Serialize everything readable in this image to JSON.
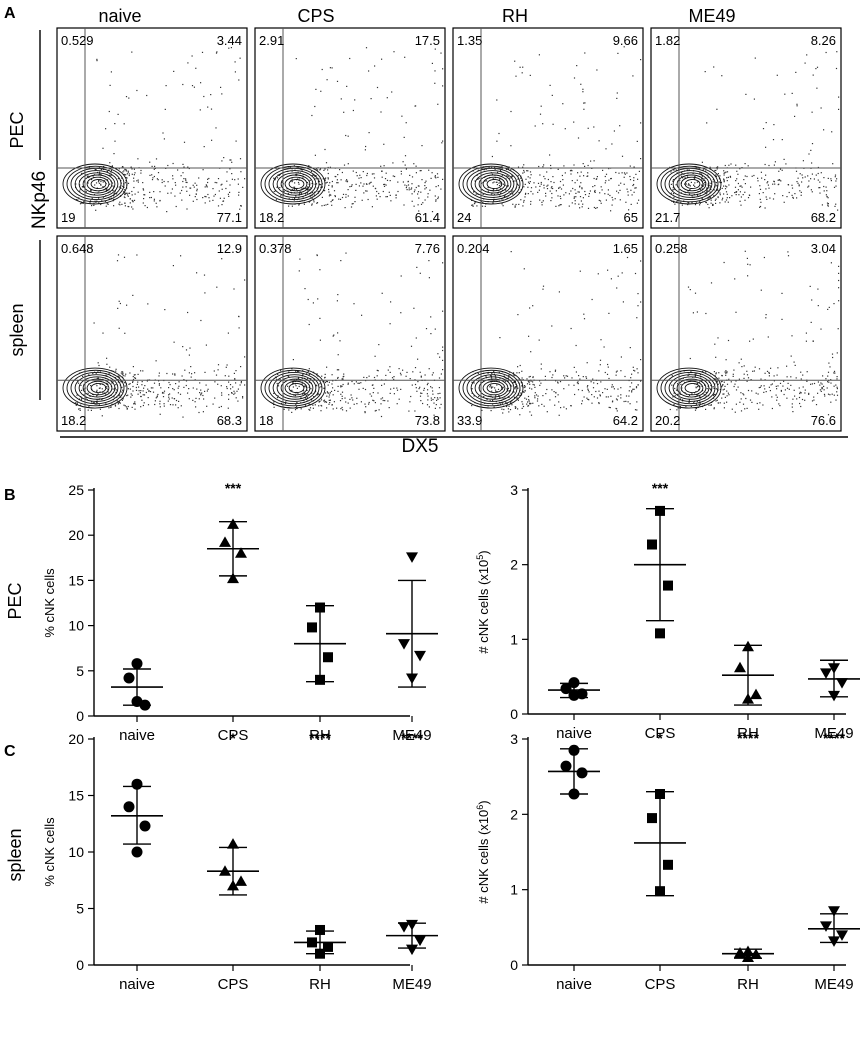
{
  "panels": {
    "A": "A",
    "B": "B",
    "C": "C"
  },
  "flow": {
    "columns": [
      "naive",
      "CPS",
      "RH",
      "ME49"
    ],
    "rows": [
      "PEC",
      "spleen"
    ],
    "y_marker": "NKp46",
    "x_marker": "DX5",
    "quadrants": [
      [
        {
          "ul": "0.529",
          "ur": "3.44",
          "ll": "19",
          "lr": "77.1"
        },
        {
          "ul": "2.91",
          "ur": "17.5",
          "ll": "18.2",
          "lr": "61.4"
        },
        {
          "ul": "1.35",
          "ur": "9.66",
          "ll": "24",
          "lr": "65"
        },
        {
          "ul": "1.82",
          "ur": "8.26",
          "ll": "21.7",
          "lr": "68.2"
        }
      ],
      [
        {
          "ul": "0.648",
          "ur": "12.9",
          "ll": "18.2",
          "lr": "68.3"
        },
        {
          "ul": "0.378",
          "ur": "7.76",
          "ll": "18",
          "lr": "73.8"
        },
        {
          "ul": "0.204",
          "ur": "1.65",
          "ll": "33.9",
          "lr": "64.2"
        },
        {
          "ul": "0.258",
          "ur": "3.04",
          "ll": "20.2",
          "lr": "76.6"
        }
      ]
    ]
  },
  "chart_data": [
    {
      "type": "scatter",
      "panel": "B",
      "row_label": "PEC",
      "categories": [
        "naive",
        "CPS",
        "RH",
        "ME49"
      ],
      "ylabel": "% cNK cells",
      "ylim": [
        0,
        25
      ],
      "yticks": [
        "0",
        "5",
        "10",
        "15",
        "20",
        "25"
      ],
      "series": [
        {
          "name": "naive",
          "marker": "circle",
          "values": [
            5.8,
            4.2,
            1.2,
            1.6
          ],
          "mean": 3.2,
          "sd": [
            1.2,
            5.2
          ],
          "sig": ""
        },
        {
          "name": "CPS",
          "marker": "triangle-up",
          "values": [
            21.2,
            19.2,
            18.0,
            15.2
          ],
          "mean": 18.5,
          "sd": [
            15.5,
            21.5
          ],
          "sig": "***"
        },
        {
          "name": "RH",
          "marker": "square",
          "values": [
            12.0,
            9.8,
            6.5,
            4.0
          ],
          "mean": 8.0,
          "sd": [
            3.8,
            12.2
          ],
          "sig": ""
        },
        {
          "name": "ME49",
          "marker": "triangle-down",
          "values": [
            17.6,
            8.0,
            6.7,
            4.2
          ],
          "mean": 9.1,
          "sd": [
            3.2,
            15.0
          ],
          "sig": ""
        }
      ]
    },
    {
      "type": "scatter",
      "panel": "B",
      "categories": [
        "naive",
        "CPS",
        "RH",
        "ME49"
      ],
      "ylabel": "# cNK cells (x10",
      "ylabel_exp": "5",
      "ylabel_end": ")",
      "ylim": [
        0,
        3
      ],
      "yticks": [
        "0",
        "1",
        "2",
        "3"
      ],
      "series": [
        {
          "name": "naive",
          "marker": "circle",
          "values": [
            0.42,
            0.34,
            0.27,
            0.25
          ],
          "mean": 0.32,
          "sd": [
            0.22,
            0.41
          ],
          "sig": ""
        },
        {
          "name": "CPS",
          "marker": "square",
          "values": [
            2.72,
            2.27,
            1.72,
            1.08
          ],
          "mean": 2.0,
          "sd": [
            1.25,
            2.75
          ],
          "sig": "***"
        },
        {
          "name": "RH",
          "marker": "triangle-up",
          "values": [
            0.9,
            0.62,
            0.26,
            0.2
          ],
          "mean": 0.52,
          "sd": [
            0.12,
            0.92
          ],
          "sig": ""
        },
        {
          "name": "ME49",
          "marker": "triangle-down",
          "values": [
            0.62,
            0.55,
            0.42,
            0.25
          ],
          "mean": 0.47,
          "sd": [
            0.23,
            0.72
          ],
          "sig": ""
        }
      ]
    },
    {
      "type": "scatter",
      "panel": "C",
      "row_label": "spleen",
      "categories": [
        "naive",
        "CPS",
        "RH",
        "ME49"
      ],
      "ylabel": "% cNK cells",
      "ylim": [
        0,
        20
      ],
      "yticks": [
        "0",
        "5",
        "10",
        "15",
        "20"
      ],
      "series": [
        {
          "name": "naive",
          "marker": "circle",
          "values": [
            16.0,
            14.0,
            12.3,
            10.0
          ],
          "mean": 13.2,
          "sd": [
            10.7,
            15.8
          ],
          "sig": ""
        },
        {
          "name": "CPS",
          "marker": "triangle-up",
          "values": [
            10.7,
            8.3,
            7.4,
            7.0
          ],
          "mean": 8.3,
          "sd": [
            6.2,
            10.4
          ],
          "sig": "*"
        },
        {
          "name": "RH",
          "marker": "square",
          "values": [
            3.1,
            2.0,
            1.6,
            1.0
          ],
          "mean": 2.0,
          "sd": [
            1.0,
            3.0
          ],
          "sig": "****"
        },
        {
          "name": "ME49",
          "marker": "triangle-down",
          "values": [
            3.6,
            3.4,
            2.2,
            1.4
          ],
          "mean": 2.6,
          "sd": [
            1.5,
            3.7
          ],
          "sig": "****"
        }
      ]
    },
    {
      "type": "scatter",
      "panel": "C",
      "categories": [
        "naive",
        "CPS",
        "RH",
        "ME49"
      ],
      "ylabel": "# cNK cells (x10",
      "ylabel_exp": "6",
      "ylabel_end": ")",
      "ylim": [
        0,
        3
      ],
      "yticks": [
        "0",
        "1",
        "2",
        "3"
      ],
      "series": [
        {
          "name": "naive",
          "marker": "circle",
          "values": [
            2.85,
            2.64,
            2.55,
            2.27
          ],
          "mean": 2.57,
          "sd": [
            2.27,
            2.87
          ],
          "sig": ""
        },
        {
          "name": "CPS",
          "marker": "square",
          "values": [
            2.27,
            1.95,
            1.33,
            0.98
          ],
          "mean": 1.62,
          "sd": [
            0.92,
            2.3
          ],
          "sig": "*"
        },
        {
          "name": "RH",
          "marker": "triangle-up",
          "values": [
            0.18,
            0.16,
            0.14,
            0.1
          ],
          "mean": 0.15,
          "sd": [
            0.09,
            0.21
          ],
          "sig": "****"
        },
        {
          "name": "ME49",
          "marker": "triangle-down",
          "values": [
            0.72,
            0.52,
            0.4,
            0.32
          ],
          "mean": 0.48,
          "sd": [
            0.3,
            0.68
          ],
          "sig": "****"
        }
      ]
    }
  ]
}
